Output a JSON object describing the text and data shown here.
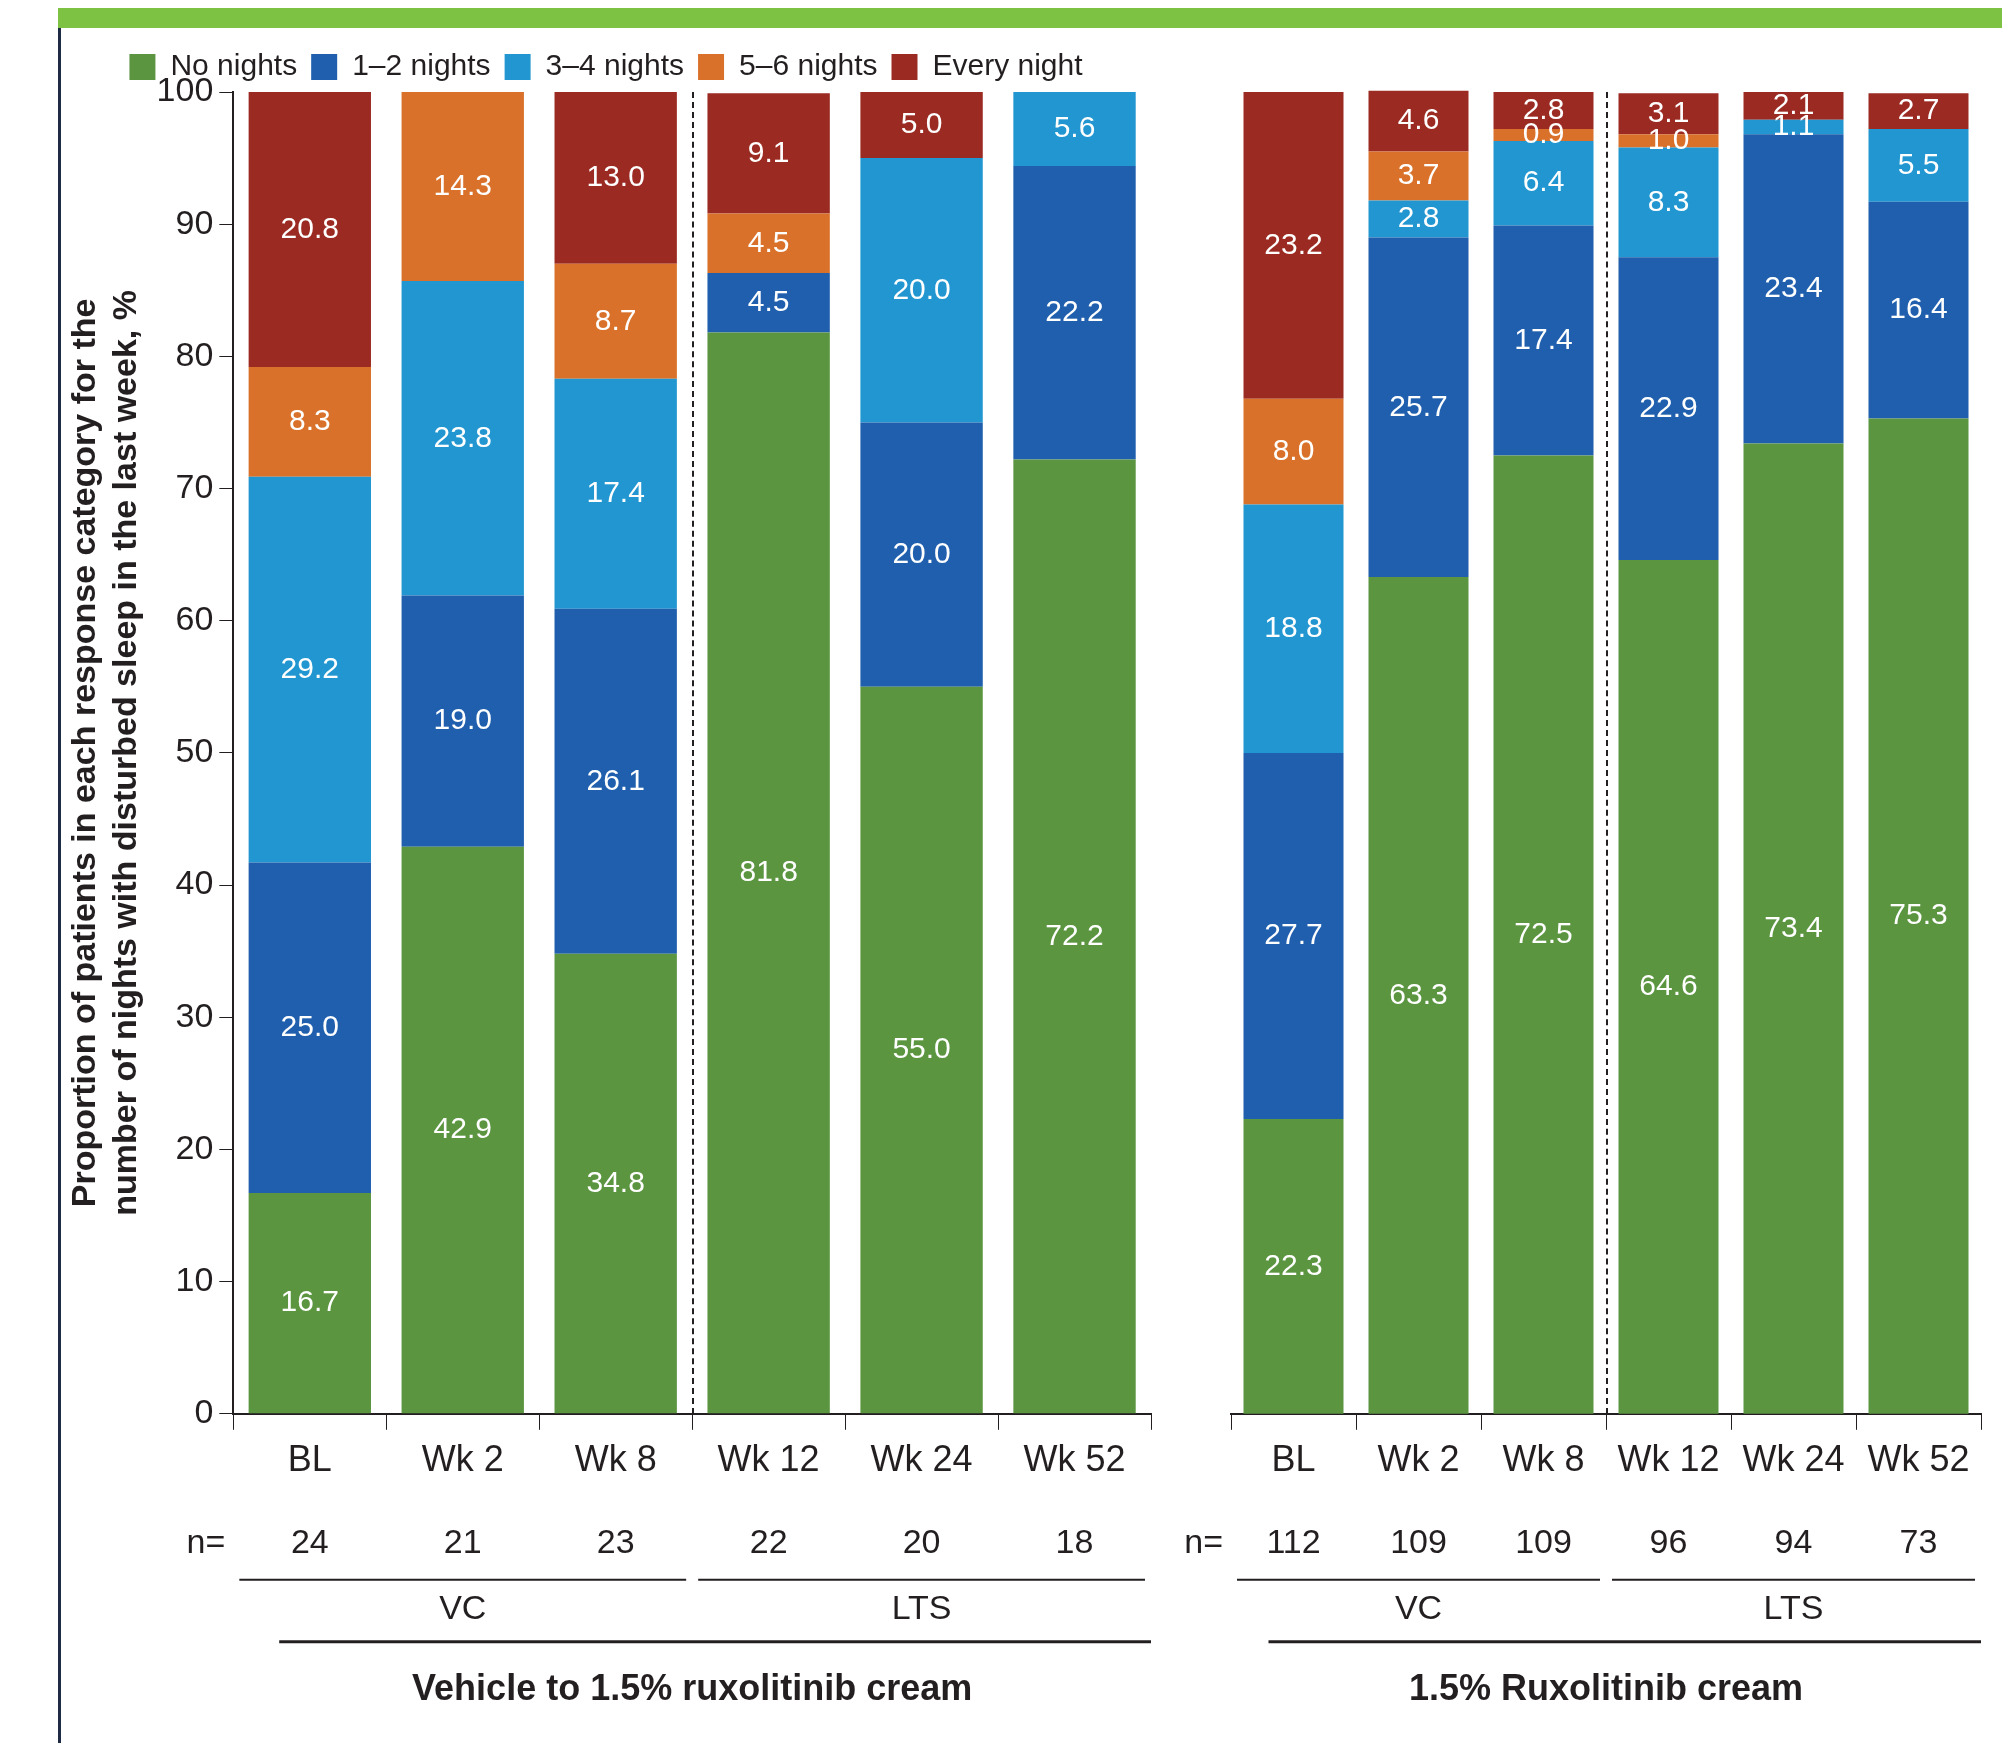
{
  "chart_data": [
    {
      "type": "bar",
      "stacked": true,
      "xlabel": "Vehicle to 1.5% ruxolitinib cream",
      "ylabel": "Proportion of patients in each response category for the number of nights with disturbed sleep in the last week, %",
      "categories": [
        "BL",
        "Wk 2",
        "Wk 8",
        "Wk 12",
        "Wk 24",
        "Wk 52"
      ],
      "ylim": [
        0,
        100
      ],
      "yticks": [
        0,
        10,
        20,
        30,
        40,
        50,
        60,
        70,
        80,
        90,
        100
      ],
      "legend": "top",
      "grid": false,
      "series": [
        {
          "name": "No nights",
          "color": "#5b9540",
          "values": [
            16.7,
            42.9,
            34.8,
            81.8,
            55.0,
            72.2
          ],
          "value_labels": [
            "16.7",
            "42.9",
            "34.8",
            "81.8",
            "55.0",
            "72.2"
          ]
        },
        {
          "name": "1–2 nights",
          "color": "#1f5fae",
          "values": [
            25.0,
            19.0,
            26.1,
            4.5,
            20.0,
            22.2
          ],
          "value_labels": [
            "25.0",
            "19.0",
            "26.1",
            "4.5",
            "20.0",
            "22.2"
          ]
        },
        {
          "name": "3–4 nights",
          "color": "#2196d0",
          "values": [
            29.2,
            23.8,
            17.4,
            null,
            20.0,
            5.6
          ],
          "value_labels": [
            "29.2",
            "23.8",
            "17.4",
            null,
            "20.0",
            "5.6"
          ]
        },
        {
          "name": "5–6 nights",
          "color": "#d9712a",
          "values": [
            8.3,
            14.3,
            8.7,
            4.5,
            null,
            null
          ],
          "value_labels": [
            "8.3",
            "14.3",
            "8.7",
            "4.5",
            null,
            null
          ]
        },
        {
          "name": "Every night",
          "color": "#9b2a22",
          "values": [
            20.8,
            null,
            13.0,
            9.1,
            5.0,
            null
          ],
          "value_labels": [
            "20.8",
            null,
            "13.0",
            "9.1",
            "5.0",
            null
          ]
        }
      ],
      "annotations": [
        "n=",
        "24",
        "21",
        "23",
        "22",
        "20",
        "18",
        "VC",
        "LTS"
      ]
    },
    {
      "type": "bar",
      "stacked": true,
      "xlabel": "1.5% Ruxolitinib cream",
      "categories": [
        "BL",
        "Wk 2",
        "Wk 8",
        "Wk 12",
        "Wk 24",
        "Wk 52"
      ],
      "ylim": [
        0,
        100
      ],
      "tick_labels": "x",
      "legend": false,
      "grid": false,
      "series": [
        {
          "color": "#5b9540",
          "values": [
            22.3,
            63.3,
            72.5,
            64.6,
            73.4,
            75.3
          ],
          "value_labels": [
            "22.3",
            "63.3",
            "72.5",
            "64.6",
            "73.4",
            "75.3"
          ]
        },
        {
          "color": "#1f5fae",
          "values": [
            27.7,
            25.7,
            17.4,
            22.9,
            23.4,
            16.4
          ],
          "value_labels": [
            "27.7",
            "25.7",
            "17.4",
            "22.9",
            "23.4",
            "16.4"
          ]
        },
        {
          "color": "#2196d0",
          "values": [
            18.8,
            2.8,
            6.4,
            8.3,
            1.1,
            5.5
          ],
          "value_labels": [
            "18.8",
            "2.8",
            "6.4",
            "8.3",
            "1.1",
            "5.5"
          ]
        },
        {
          "color": "#d9712a",
          "values": [
            8.0,
            3.7,
            0.9,
            1.0,
            null,
            null
          ],
          "value_labels": [
            "8.0",
            "3.7",
            "0.9",
            "1.0",
            null,
            null
          ]
        },
        {
          "color": "#9b2a22",
          "values": [
            23.2,
            4.6,
            2.8,
            3.1,
            2.1,
            2.7
          ],
          "value_labels": [
            "23.2",
            "4.6",
            "2.8",
            "3.1",
            "2.1",
            "2.7"
          ]
        }
      ],
      "annotations": [
        "n=",
        "112",
        "109",
        "109",
        "96",
        "94",
        "73",
        "VC",
        "LTS"
      ]
    }
  ]
}
